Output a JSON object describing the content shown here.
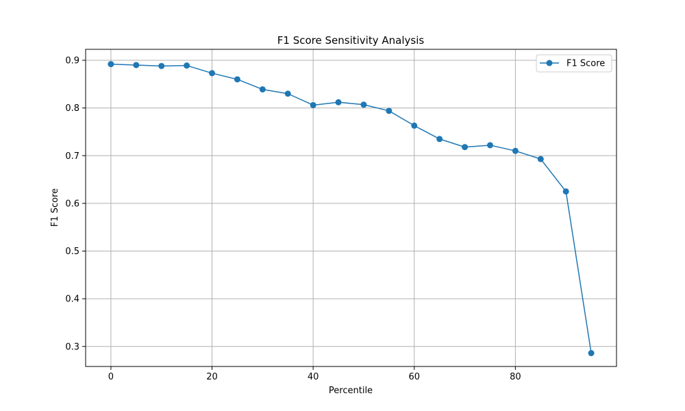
{
  "chart_data": {
    "type": "line",
    "title": "F1 Score Sensitivity Analysis",
    "xlabel": "Percentile",
    "ylabel": "F1 Score",
    "xlim": [
      -5,
      100
    ],
    "ylim": [
      0.258,
      0.923
    ],
    "xticks": [
      0,
      20,
      40,
      60,
      80
    ],
    "yticks": [
      0.3,
      0.4,
      0.5,
      0.6,
      0.7,
      0.8,
      0.9
    ],
    "grid": true,
    "legend_position": "top-right",
    "series": [
      {
        "name": "F1 Score",
        "color": "#1f77b4",
        "marker": "circle",
        "x": [
          0,
          5,
          10,
          15,
          20,
          25,
          30,
          35,
          40,
          45,
          50,
          55,
          60,
          65,
          70,
          75,
          80,
          85,
          90,
          95
        ],
        "y": [
          0.892,
          0.89,
          0.888,
          0.889,
          0.873,
          0.86,
          0.839,
          0.83,
          0.806,
          0.812,
          0.807,
          0.794,
          0.763,
          0.735,
          0.718,
          0.722,
          0.71,
          0.693,
          0.625,
          0.286
        ]
      }
    ]
  }
}
